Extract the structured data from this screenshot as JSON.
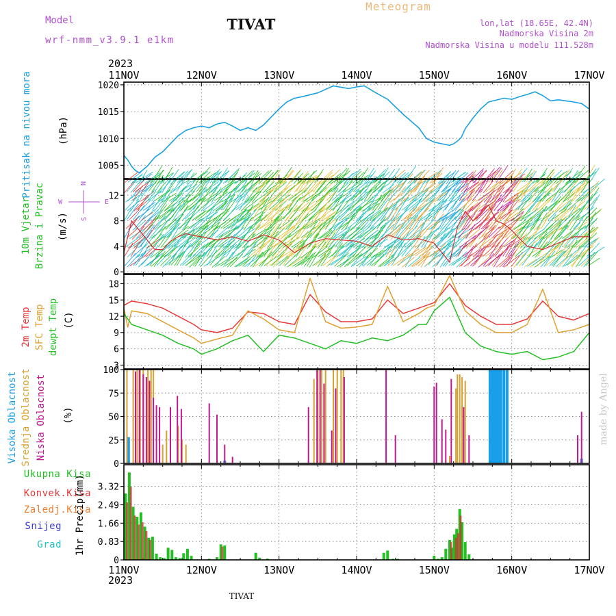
{
  "header": {
    "model_label": "Model",
    "model_name": "wrf-nmm_v3.9.1 e1km",
    "station": "TIVAT",
    "meteogram": "Meteogram",
    "lonlat": "lon,lat (18.65E, 42.4N)",
    "elevation": "Nadmorska Visina 2m",
    "model_elevation": "Nadmorska Visina u modelu 111.528m",
    "year": "2023",
    "footer_station": "TIVAT",
    "credit": "made by Angel"
  },
  "colors": {
    "pressure": "#1aa0e0",
    "temp2m": "#e83838",
    "sfc": "#e0a030",
    "dewpt": "#22c022",
    "cloud_high": "#1a9ee8",
    "cloud_mid": "#d8a030",
    "cloud_low": "#c01890",
    "precip_total": "#22c022",
    "precip_conv": "#d03030",
    "precip_snow": "#3030d0",
    "precip_grad": "#20c0c0",
    "precip_zal": "#f08030",
    "header_purple": "#b050d0",
    "meteogram_orange": "#e8b878"
  },
  "chart_data": [
    {
      "id": "pressure",
      "type": "line",
      "ylabel_main": "Pritisak na nivou mora",
      "ylabel_unit": "(hPa)",
      "ylim": [
        1002.5,
        1020.5
      ],
      "yticks": [
        1005,
        1010,
        1015,
        1020
      ],
      "x_days": [
        "11NOV",
        "12NOV",
        "13NOV",
        "14NOV",
        "15NOV",
        "16NOV",
        "17NOV"
      ],
      "x": [
        0,
        0.05,
        0.1,
        0.15,
        0.2,
        0.3,
        0.4,
        0.5,
        0.6,
        0.7,
        0.8,
        0.9,
        1.0,
        1.1,
        1.2,
        1.3,
        1.4,
        1.5,
        1.6,
        1.7,
        1.8,
        1.9,
        2.0,
        2.1,
        2.2,
        2.3,
        2.5,
        2.7,
        2.9,
        3.0,
        3.1,
        3.25,
        3.4,
        3.6,
        3.8,
        3.9,
        4.0,
        4.1,
        4.2,
        4.25,
        4.3,
        4.35,
        4.4,
        4.5,
        4.6,
        4.7,
        4.9,
        5.0,
        5.1,
        5.2,
        5.3,
        5.4,
        5.5,
        5.6,
        5.7,
        5.8,
        5.9,
        6.0
      ],
      "y": [
        1006.8,
        1006.0,
        1004.8,
        1004.0,
        1003.6,
        1004.8,
        1006.5,
        1007.5,
        1009.0,
        1010.5,
        1011.5,
        1012.0,
        1012.3,
        1012.0,
        1012.7,
        1013.0,
        1012.3,
        1011.5,
        1012.0,
        1011.5,
        1012.5,
        1014.0,
        1015.5,
        1016.8,
        1017.5,
        1017.8,
        1018.5,
        1019.8,
        1019.3,
        1019.6,
        1019.8,
        1018.5,
        1017.3,
        1014.5,
        1012.0,
        1010.0,
        1009.3,
        1009.0,
        1008.7,
        1009.0,
        1009.5,
        1010.2,
        1011.8,
        1013.8,
        1015.5,
        1016.8,
        1017.5,
        1017.3,
        1017.8,
        1018.2,
        1018.7,
        1018.0,
        1017.0,
        1017.2,
        1017.0,
        1016.8,
        1016.5,
        1015.5
      ]
    },
    {
      "id": "wind",
      "type": "line",
      "ylabel_main1": "10m Vjetar",
      "ylabel_main2": "Brzina i Pravac",
      "ylabel_unit": "(m/s)",
      "ylim": [
        -0.3,
        14.5
      ],
      "yticks": [
        0,
        4,
        8,
        12
      ],
      "compass": {
        "n": "N",
        "s": "S",
        "e": "E",
        "w": "W"
      },
      "x": [
        0,
        0.1,
        0.2,
        0.3,
        0.4,
        0.5,
        0.6,
        0.7,
        0.8,
        0.9,
        1.0,
        1.2,
        1.4,
        1.6,
        1.8,
        2.0,
        2.2,
        2.4,
        2.6,
        2.8,
        3.0,
        3.2,
        3.4,
        3.6,
        3.8,
        4.0,
        4.2,
        4.3,
        4.4,
        4.5,
        4.6,
        4.7,
        4.8,
        4.9,
        5.0,
        5.2,
        5.4,
        5.6,
        5.8,
        6.0
      ],
      "y": [
        3.0,
        8.0,
        6.5,
        5.0,
        3.5,
        3.5,
        4.8,
        5.5,
        6.0,
        5.7,
        5.5,
        5.0,
        5.5,
        4.8,
        5.8,
        5.0,
        3.0,
        4.5,
        5.2,
        5.0,
        4.8,
        4.0,
        5.8,
        5.0,
        5.2,
        4.5,
        1.5,
        7.0,
        9.5,
        8.0,
        9.0,
        10.5,
        8.0,
        7.5,
        6.5,
        4.0,
        3.5,
        4.5,
        5.5,
        5.5
      ]
    },
    {
      "id": "temperature",
      "type": "line",
      "ylabel_main1": "2m Temp",
      "ylabel_main2": "SFC Temp",
      "ylabel_main3": "dewpt Temp",
      "ylabel_unit": "(C)",
      "ylim": [
        2.3,
        19.7
      ],
      "yticks": [
        3,
        6,
        9,
        12,
        15,
        18
      ],
      "series": [
        {
          "name": "2m Temp",
          "key": "temp2m",
          "x": [
            0,
            0.1,
            0.3,
            0.5,
            0.7,
            0.9,
            1.0,
            1.2,
            1.4,
            1.6,
            1.8,
            2.0,
            2.2,
            2.4,
            2.6,
            2.8,
            3.0,
            3.2,
            3.4,
            3.6,
            3.8,
            3.9,
            4.0,
            4.2,
            4.4,
            4.6,
            4.8,
            5.0,
            5.2,
            5.4,
            5.6,
            5.8,
            6.0
          ],
          "y": [
            14.0,
            14.8,
            14.3,
            13.5,
            12.0,
            10.5,
            9.5,
            9.0,
            9.8,
            12.8,
            12.5,
            11.0,
            10.5,
            16.0,
            12.8,
            11.0,
            11.0,
            11.5,
            15.0,
            12.5,
            13.5,
            14.0,
            14.5,
            18.0,
            14.0,
            12.0,
            10.5,
            10.5,
            11.5,
            14.8,
            12.0,
            11.3,
            12.5
          ]
        },
        {
          "name": "SFC Temp",
          "key": "sfc",
          "x": [
            0,
            0.05,
            0.1,
            0.3,
            0.5,
            0.7,
            0.9,
            1.0,
            1.2,
            1.4,
            1.6,
            1.8,
            2.0,
            2.2,
            2.4,
            2.6,
            2.8,
            3.0,
            3.2,
            3.4,
            3.6,
            3.8,
            3.9,
            4.0,
            4.2,
            4.4,
            4.6,
            4.8,
            5.0,
            5.2,
            5.4,
            5.6,
            5.8,
            6.0
          ],
          "y": [
            13.5,
            10.0,
            13.0,
            12.5,
            11.0,
            9.5,
            8.0,
            7.0,
            7.8,
            8.5,
            13.0,
            11.5,
            9.5,
            9.0,
            19.0,
            11.0,
            9.8,
            10.0,
            10.5,
            17.5,
            11.0,
            12.5,
            13.5,
            14.0,
            19.5,
            13.0,
            10.5,
            9.0,
            9.0,
            10.5,
            17.0,
            9.0,
            9.5,
            10.5
          ]
        },
        {
          "name": "dewpt Temp",
          "key": "dewpt",
          "x": [
            0,
            0.1,
            0.3,
            0.5,
            0.7,
            0.9,
            1.0,
            1.2,
            1.4,
            1.6,
            1.8,
            2.0,
            2.2,
            2.4,
            2.6,
            2.8,
            3.0,
            3.2,
            3.4,
            3.6,
            3.8,
            3.9,
            4.0,
            4.2,
            4.4,
            4.6,
            4.8,
            5.0,
            5.2,
            5.4,
            5.6,
            5.8,
            6.0
          ],
          "y": [
            12.5,
            10.5,
            9.5,
            8.5,
            7.0,
            6.0,
            5.0,
            6.0,
            7.5,
            8.5,
            5.5,
            8.5,
            8.0,
            7.0,
            6.0,
            7.5,
            7.0,
            8.0,
            7.5,
            8.5,
            10.5,
            10.5,
            13.0,
            15.5,
            9.0,
            6.5,
            5.5,
            5.0,
            5.5,
            4.0,
            4.5,
            5.5,
            9.0
          ]
        }
      ]
    },
    {
      "id": "clouds",
      "type": "bar",
      "ylabel_main1": "Visoka Oblacnost",
      "ylabel_main2": "Srednja Oblacnost",
      "ylabel_main3": "Niska Oblacnost",
      "ylabel_unit": "(%)",
      "ylim": [
        0,
        100
      ],
      "yticks": [
        0,
        25,
        50,
        75,
        100
      ],
      "series": [
        {
          "name": "Visoka Oblacnost",
          "key": "cloud_high",
          "x": [
            0.06,
            1.3,
            4.72,
            4.74,
            4.76,
            4.78,
            4.8,
            4.83,
            4.86,
            4.9,
            4.94,
            5.9
          ],
          "values": [
            28,
            3,
            100,
            100,
            100,
            100,
            100,
            100,
            100,
            100,
            100,
            5
          ]
        },
        {
          "name": "Srednja Oblacnost",
          "key": "cloud_mid",
          "x": [
            0.04,
            0.12,
            0.17,
            0.21,
            0.25,
            0.31,
            0.35,
            0.38,
            0.5,
            0.55,
            0.6,
            0.7,
            0.75,
            0.8,
            2.45,
            2.5,
            2.55,
            2.6,
            2.7,
            2.75,
            2.8,
            2.83,
            4.2,
            4.28,
            4.3,
            4.33,
            4.36,
            4.4
          ],
          "values": [
            100,
            100,
            100,
            100,
            100,
            100,
            100,
            100,
            20,
            35,
            20,
            40,
            25,
            20,
            90,
            100,
            100,
            100,
            100,
            100,
            100,
            100,
            8,
            80,
            95,
            95,
            92,
            88
          ]
        },
        {
          "name": "Niska Oblacnost",
          "key": "cloud_low",
          "x": [
            0.15,
            0.2,
            0.25,
            0.29,
            0.33,
            0.38,
            0.42,
            0.46,
            0.6,
            0.69,
            0.74,
            1.1,
            1.2,
            1.3,
            1.4,
            2.38,
            2.49,
            2.53,
            2.58,
            2.68,
            2.73,
            2.84,
            3.38,
            3.5,
            4.0,
            4.03,
            4.1,
            4.15,
            4.22,
            4.38,
            4.45,
            5.85,
            5.9
          ],
          "values": [
            98,
            100,
            95,
            92,
            88,
            70,
            62,
            60,
            60,
            72,
            58,
            64,
            52,
            20,
            7,
            60,
            100,
            100,
            85,
            35,
            80,
            92,
            100,
            30,
            82,
            86,
            47,
            36,
            90,
            60,
            30,
            30,
            55
          ]
        }
      ]
    },
    {
      "id": "precip",
      "type": "bar",
      "ylabel_main": "1hr Precip",
      "ylabel_unit": "(mm)",
      "ylim": [
        0,
        4.3
      ],
      "yticks": [
        0,
        0.83,
        1.66,
        2.49,
        3.32
      ],
      "legend": [
        "Ukupna Kisa",
        "Konvek.Kisa",
        "Zaledj.Kisa",
        "Snijeg",
        "Grad"
      ],
      "series": [
        {
          "name": "Ukupna Kisa",
          "key": "precip_total",
          "x": [
            0.02,
            0.07,
            0.12,
            0.17,
            0.22,
            0.27,
            0.32,
            0.37,
            0.42,
            0.47,
            0.52,
            0.57,
            0.62,
            0.67,
            0.72,
            0.77,
            0.82,
            0.87,
            1.1,
            1.2,
            1.25,
            1.3,
            1.7,
            1.75,
            1.85,
            3.35,
            3.4,
            3.47,
            3.53,
            4.0,
            4.05,
            4.1,
            4.15,
            4.2,
            4.23,
            4.26,
            4.29,
            4.33,
            4.36,
            4.4,
            4.45
          ],
          "values": [
            3.0,
            3.95,
            2.4,
            1.95,
            2.15,
            1.5,
            1.0,
            1.05,
            0.28,
            0.12,
            0.08,
            0.55,
            0.45,
            0.12,
            0.08,
            0.3,
            0.5,
            0.18,
            0.05,
            0.12,
            0.7,
            0.65,
            0.32,
            0.1,
            0.06,
            0.32,
            0.42,
            0.05,
            0.05,
            0.18,
            0.05,
            0.12,
            0.5,
            0.9,
            0.55,
            1.15,
            1.4,
            2.3,
            1.7,
            0.8,
            0.25
          ]
        },
        {
          "name": "Konvek.Kisa",
          "key": "precip_conv",
          "x": [
            0.04,
            0.09,
            0.14,
            0.19,
            0.24,
            0.29,
            0.34,
            1.27,
            4.22,
            4.28,
            4.31,
            4.34
          ],
          "values": [
            2.6,
            3.3,
            2.0,
            1.6,
            1.7,
            1.3,
            0.9,
            0.6,
            0.8,
            1.0,
            1.2,
            2.0
          ]
        }
      ]
    }
  ]
}
